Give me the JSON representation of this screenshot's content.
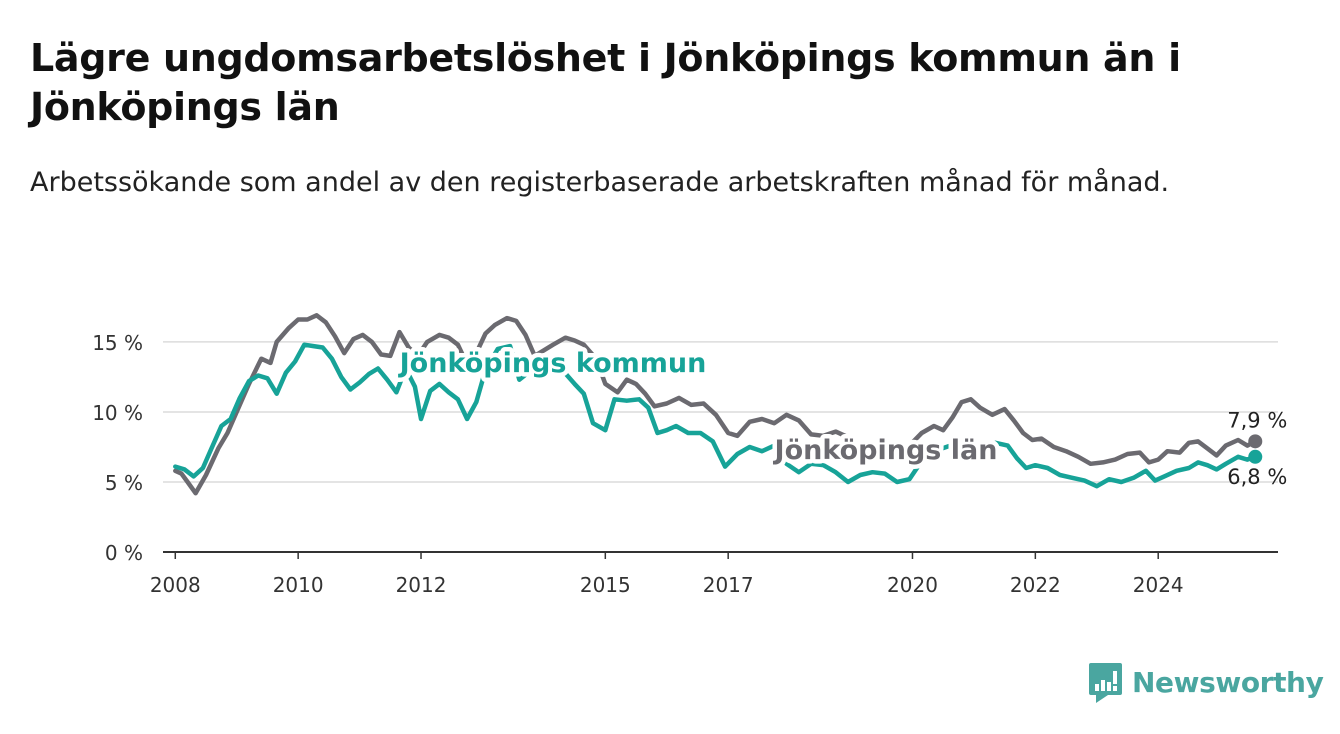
{
  "header": {
    "title": "Lägre ungdomsarbetslöshet i Jönköpings kommun än i Jönköpings län",
    "subtitle": "Arbetssökande som andel av den registerbaserade arbetskraften månad för månad."
  },
  "brand": {
    "name": "Newsworthy",
    "color": "#4aa6a0"
  },
  "chart_data": {
    "type": "line",
    "y_ticks": [
      {
        "value": 0,
        "label": "0 %"
      },
      {
        "value": 5,
        "label": "5 %"
      },
      {
        "value": 10,
        "label": "10 %"
      },
      {
        "value": 15,
        "label": "15 %"
      }
    ],
    "x_ticks": [
      {
        "value": 2008,
        "label": "2008"
      },
      {
        "value": 2010,
        "label": "2010"
      },
      {
        "value": 2012,
        "label": "2012"
      },
      {
        "value": 2015,
        "label": "2015"
      },
      {
        "value": 2017,
        "label": "2017"
      },
      {
        "value": 2020,
        "label": "2020"
      },
      {
        "value": 2022,
        "label": "2022"
      },
      {
        "value": 2024,
        "label": "2024"
      }
    ],
    "xlim": [
      2007.8,
      2025.95
    ],
    "ylim": [
      0,
      17.5
    ],
    "grid": true,
    "series": [
      {
        "name": "Jönköpings län",
        "color": "#6b6a70",
        "end_label": "7,9 %",
        "points": [
          [
            2008.0,
            5.8
          ],
          [
            2008.1,
            5.6
          ],
          [
            2008.2,
            5.0
          ],
          [
            2008.33,
            4.2
          ],
          [
            2008.5,
            5.5
          ],
          [
            2008.7,
            7.4
          ],
          [
            2008.85,
            8.5
          ],
          [
            2009.0,
            10.0
          ],
          [
            2009.2,
            12.0
          ],
          [
            2009.4,
            13.8
          ],
          [
            2009.55,
            13.5
          ],
          [
            2009.65,
            15.0
          ],
          [
            2009.85,
            16.0
          ],
          [
            2010.0,
            16.6
          ],
          [
            2010.15,
            16.6
          ],
          [
            2010.3,
            16.9
          ],
          [
            2010.45,
            16.4
          ],
          [
            2010.6,
            15.4
          ],
          [
            2010.75,
            14.2
          ],
          [
            2010.9,
            15.2
          ],
          [
            2011.05,
            15.5
          ],
          [
            2011.2,
            15.0
          ],
          [
            2011.35,
            14.1
          ],
          [
            2011.5,
            14.0
          ],
          [
            2011.65,
            15.7
          ],
          [
            2011.8,
            14.6
          ],
          [
            2011.95,
            14.0
          ],
          [
            2012.1,
            15.0
          ],
          [
            2012.3,
            15.5
          ],
          [
            2012.45,
            15.3
          ],
          [
            2012.6,
            14.8
          ],
          [
            2012.75,
            13.4
          ],
          [
            2012.9,
            14.2
          ],
          [
            2013.05,
            15.6
          ],
          [
            2013.2,
            16.2
          ],
          [
            2013.4,
            16.7
          ],
          [
            2013.55,
            16.5
          ],
          [
            2013.7,
            15.5
          ],
          [
            2013.85,
            14.0
          ],
          [
            2014.0,
            14.4
          ],
          [
            2014.15,
            14.8
          ],
          [
            2014.35,
            15.3
          ],
          [
            2014.5,
            15.1
          ],
          [
            2014.65,
            14.8
          ],
          [
            2014.85,
            13.8
          ],
          [
            2015.0,
            12.0
          ],
          [
            2015.2,
            11.4
          ],
          [
            2015.35,
            12.3
          ],
          [
            2015.5,
            12.0
          ],
          [
            2015.65,
            11.3
          ],
          [
            2015.8,
            10.4
          ],
          [
            2016.0,
            10.6
          ],
          [
            2016.2,
            11.0
          ],
          [
            2016.4,
            10.5
          ],
          [
            2016.6,
            10.6
          ],
          [
            2016.8,
            9.8
          ],
          [
            2017.0,
            8.5
          ],
          [
            2017.15,
            8.3
          ],
          [
            2017.35,
            9.3
          ],
          [
            2017.55,
            9.5
          ],
          [
            2017.75,
            9.2
          ],
          [
            2017.95,
            9.8
          ],
          [
            2018.15,
            9.4
          ],
          [
            2018.35,
            8.4
          ],
          [
            2018.55,
            8.3
          ],
          [
            2018.75,
            8.6
          ],
          [
            2018.95,
            8.2
          ],
          [
            2019.15,
            7.6
          ],
          [
            2019.35,
            7.7
          ],
          [
            2019.55,
            7.8
          ],
          [
            2019.75,
            7.2
          ],
          [
            2019.95,
            7.6
          ],
          [
            2020.15,
            8.5
          ],
          [
            2020.35,
            9.0
          ],
          [
            2020.5,
            8.7
          ],
          [
            2020.65,
            9.6
          ],
          [
            2020.8,
            10.7
          ],
          [
            2020.95,
            10.9
          ],
          [
            2021.1,
            10.3
          ],
          [
            2021.3,
            9.8
          ],
          [
            2021.5,
            10.2
          ],
          [
            2021.65,
            9.4
          ],
          [
            2021.8,
            8.5
          ],
          [
            2021.95,
            8.0
          ],
          [
            2022.1,
            8.1
          ],
          [
            2022.3,
            7.5
          ],
          [
            2022.5,
            7.2
          ],
          [
            2022.7,
            6.8
          ],
          [
            2022.9,
            6.3
          ],
          [
            2023.1,
            6.4
          ],
          [
            2023.3,
            6.6
          ],
          [
            2023.5,
            7.0
          ],
          [
            2023.7,
            7.1
          ],
          [
            2023.85,
            6.4
          ],
          [
            2024.0,
            6.6
          ],
          [
            2024.15,
            7.2
          ],
          [
            2024.35,
            7.1
          ],
          [
            2024.5,
            7.8
          ],
          [
            2024.65,
            7.9
          ],
          [
            2024.8,
            7.4
          ],
          [
            2024.95,
            6.9
          ],
          [
            2025.1,
            7.6
          ],
          [
            2025.3,
            8.0
          ],
          [
            2025.45,
            7.6
          ],
          [
            2025.58,
            7.9
          ]
        ]
      },
      {
        "name": "Jönköpings kommun",
        "color": "#17a398",
        "end_label": "6,8 %",
        "points": [
          [
            2008.0,
            6.1
          ],
          [
            2008.15,
            5.9
          ],
          [
            2008.3,
            5.4
          ],
          [
            2008.45,
            6.0
          ],
          [
            2008.6,
            7.5
          ],
          [
            2008.75,
            9.0
          ],
          [
            2008.9,
            9.5
          ],
          [
            2009.05,
            11.0
          ],
          [
            2009.2,
            12.2
          ],
          [
            2009.35,
            12.6
          ],
          [
            2009.5,
            12.4
          ],
          [
            2009.65,
            11.3
          ],
          [
            2009.8,
            12.8
          ],
          [
            2009.95,
            13.6
          ],
          [
            2010.1,
            14.8
          ],
          [
            2010.25,
            14.7
          ],
          [
            2010.4,
            14.6
          ],
          [
            2010.55,
            13.8
          ],
          [
            2010.7,
            12.5
          ],
          [
            2010.85,
            11.6
          ],
          [
            2011.0,
            12.1
          ],
          [
            2011.15,
            12.7
          ],
          [
            2011.3,
            13.1
          ],
          [
            2011.45,
            12.3
          ],
          [
            2011.6,
            11.4
          ],
          [
            2011.75,
            13.1
          ],
          [
            2011.9,
            11.8
          ],
          [
            2012.0,
            9.5
          ],
          [
            2012.15,
            11.5
          ],
          [
            2012.3,
            12.0
          ],
          [
            2012.45,
            11.4
          ],
          [
            2012.6,
            10.9
          ],
          [
            2012.75,
            9.5
          ],
          [
            2012.9,
            10.7
          ],
          [
            2013.05,
            13.0
          ],
          [
            2013.25,
            14.5
          ],
          [
            2013.45,
            14.7
          ],
          [
            2013.6,
            12.3
          ],
          [
            2013.8,
            13.0
          ],
          [
            2013.95,
            12.7
          ],
          [
            2014.1,
            13.5
          ],
          [
            2014.3,
            13.0
          ],
          [
            2014.5,
            12.0
          ],
          [
            2014.65,
            11.3
          ],
          [
            2014.8,
            9.2
          ],
          [
            2015.0,
            8.7
          ],
          [
            2015.15,
            10.9
          ],
          [
            2015.35,
            10.8
          ],
          [
            2015.55,
            10.9
          ],
          [
            2015.7,
            10.3
          ],
          [
            2015.85,
            8.5
          ],
          [
            2016.0,
            8.7
          ],
          [
            2016.15,
            9.0
          ],
          [
            2016.35,
            8.5
          ],
          [
            2016.55,
            8.5
          ],
          [
            2016.75,
            7.9
          ],
          [
            2016.95,
            6.1
          ],
          [
            2017.15,
            7.0
          ],
          [
            2017.35,
            7.5
          ],
          [
            2017.55,
            7.2
          ],
          [
            2017.75,
            7.6
          ],
          [
            2017.95,
            6.3
          ],
          [
            2018.15,
            5.7
          ],
          [
            2018.35,
            6.3
          ],
          [
            2018.55,
            6.2
          ],
          [
            2018.75,
            5.7
          ],
          [
            2018.95,
            5.0
          ],
          [
            2019.15,
            5.5
          ],
          [
            2019.35,
            5.7
          ],
          [
            2019.55,
            5.6
          ],
          [
            2019.75,
            5.0
          ],
          [
            2019.95,
            5.2
          ],
          [
            2020.15,
            6.5
          ],
          [
            2020.35,
            7.2
          ],
          [
            2020.55,
            7.5
          ],
          [
            2020.75,
            7.8
          ],
          [
            2020.95,
            7.5
          ],
          [
            2021.15,
            7.5
          ],
          [
            2021.35,
            7.8
          ],
          [
            2021.55,
            7.6
          ],
          [
            2021.7,
            6.7
          ],
          [
            2021.85,
            6.0
          ],
          [
            2022.0,
            6.2
          ],
          [
            2022.2,
            6.0
          ],
          [
            2022.4,
            5.5
          ],
          [
            2022.6,
            5.3
          ],
          [
            2022.8,
            5.1
          ],
          [
            2023.0,
            4.7
          ],
          [
            2023.2,
            5.2
          ],
          [
            2023.4,
            5.0
          ],
          [
            2023.6,
            5.3
          ],
          [
            2023.8,
            5.8
          ],
          [
            2023.95,
            5.1
          ],
          [
            2024.1,
            5.4
          ],
          [
            2024.3,
            5.8
          ],
          [
            2024.5,
            6.0
          ],
          [
            2024.65,
            6.4
          ],
          [
            2024.8,
            6.2
          ],
          [
            2024.95,
            5.9
          ],
          [
            2025.1,
            6.3
          ],
          [
            2025.3,
            6.8
          ],
          [
            2025.45,
            6.6
          ],
          [
            2025.58,
            6.8
          ]
        ]
      }
    ]
  }
}
